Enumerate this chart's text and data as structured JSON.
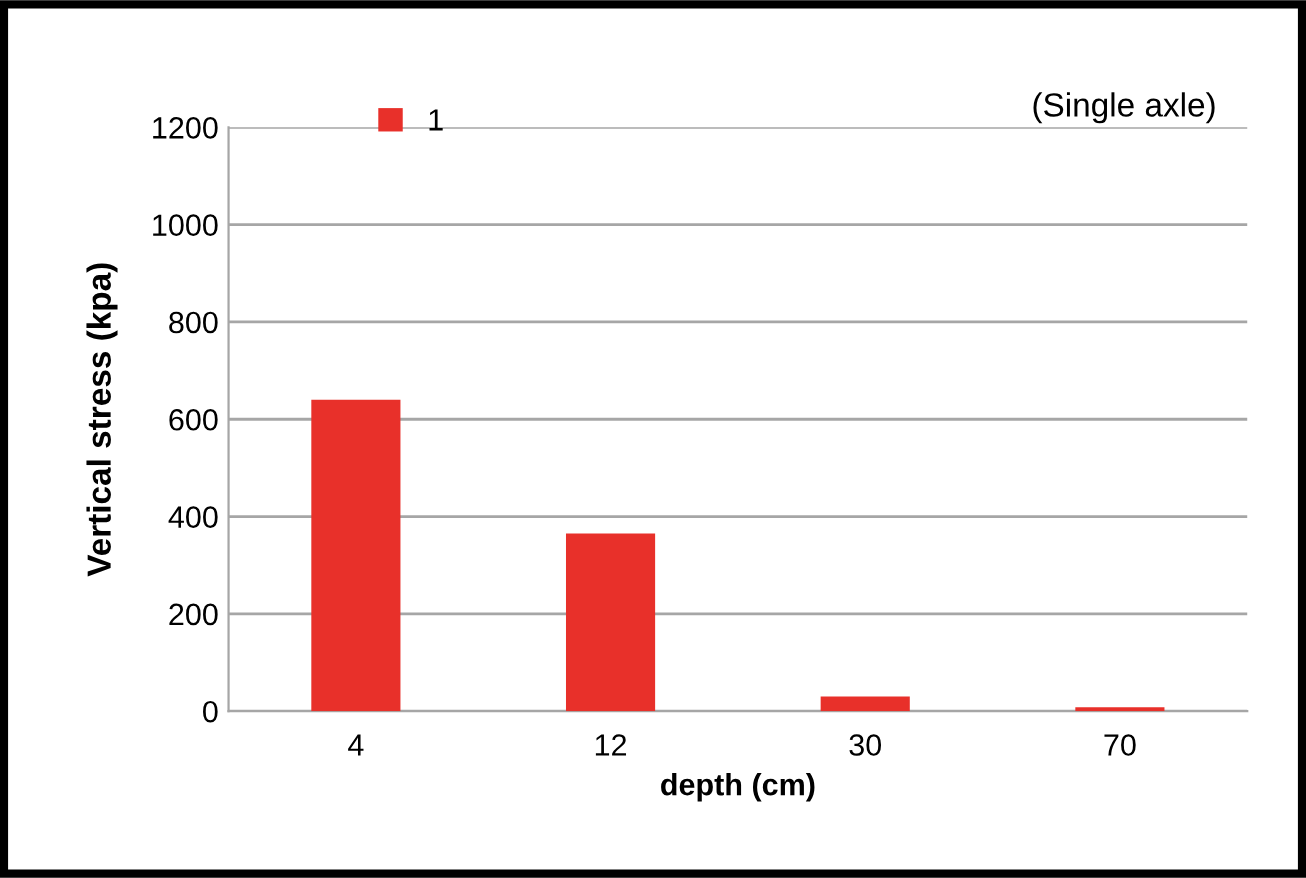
{
  "chart_data": {
    "type": "bar",
    "xlabel": "depth (cm)",
    "ylabel": "Vertical stress (kpa)",
    "categories": [
      "4",
      "12",
      "30",
      "70"
    ],
    "series": [
      {
        "name": "1",
        "color": "#e8302a",
        "values": [
          640,
          365,
          30,
          8
        ]
      }
    ],
    "ylim": [
      0,
      1200
    ],
    "yticks": [
      0,
      200,
      400,
      600,
      800,
      1000,
      1200
    ],
    "grid": "y",
    "legend": "top left",
    "annotations": [
      "(Single axle)"
    ]
  }
}
